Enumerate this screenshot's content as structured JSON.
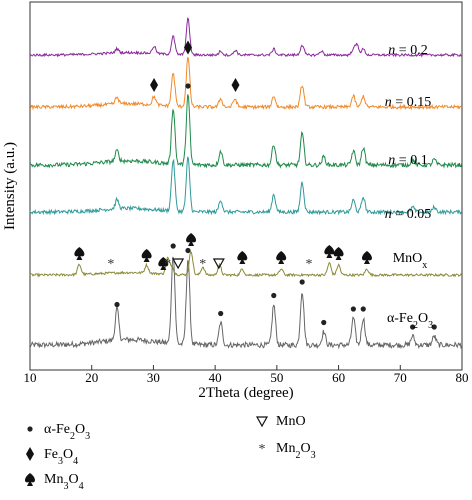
{
  "chart_data": {
    "type": "line",
    "xlabel": "2Theta (degree)",
    "ylabel": "Intensity (a.u.)",
    "xlim": [
      10,
      80
    ],
    "xticks": [
      10,
      20,
      30,
      40,
      50,
      60,
      70,
      80
    ],
    "series": [
      {
        "name": "α-Fe2O3",
        "label_html": "α-Fe<tspan baseline-shift='sub' font-size='10'>2</tspan>O<tspan baseline-shift='sub' font-size='10'>3</tspan>",
        "color": "#666666",
        "peaks": [
          [
            24.1,
            0.35
          ],
          [
            33.2,
            1.0
          ],
          [
            35.6,
            0.95
          ],
          [
            40.9,
            0.25
          ],
          [
            49.5,
            0.45
          ],
          [
            54.1,
            0.6
          ],
          [
            57.6,
            0.15
          ],
          [
            62.4,
            0.3
          ],
          [
            64.0,
            0.3
          ],
          [
            72.0,
            0.1
          ],
          [
            75.5,
            0.1
          ]
        ],
        "markers": [
          [
            24.1,
            "circle"
          ],
          [
            33.2,
            "circle"
          ],
          [
            35.6,
            "circle"
          ],
          [
            40.9,
            "circle"
          ],
          [
            49.5,
            "circle"
          ],
          [
            54.1,
            "circle"
          ],
          [
            57.6,
            "circle"
          ],
          [
            62.4,
            "circle"
          ],
          [
            64.0,
            "circle"
          ],
          [
            72.0,
            "circle"
          ],
          [
            75.5,
            "circle"
          ]
        ]
      },
      {
        "name": "MnOx",
        "label_html": "MnO<tspan baseline-shift='sub' font-size='10'>x</tspan>",
        "color": "#8a8a36",
        "peaks": [
          [
            18.0,
            0.25
          ],
          [
            28.9,
            0.2
          ],
          [
            32.3,
            0.4
          ],
          [
            33.0,
            0.2
          ],
          [
            36.1,
            0.6
          ],
          [
            38.0,
            0.2
          ],
          [
            40.7,
            0.25
          ],
          [
            44.4,
            0.15
          ],
          [
            50.7,
            0.15
          ],
          [
            58.5,
            0.3
          ],
          [
            60.0,
            0.25
          ],
          [
            64.6,
            0.15
          ]
        ],
        "markers": [
          [
            18.0,
            "spade"
          ],
          [
            28.9,
            "spade"
          ],
          [
            31.6,
            "spade"
          ],
          [
            36.1,
            "spade"
          ],
          [
            44.4,
            "spade"
          ],
          [
            50.7,
            "spade"
          ],
          [
            58.5,
            "spade"
          ],
          [
            60.0,
            "spade"
          ],
          [
            64.6,
            "spade"
          ],
          [
            23.1,
            "star"
          ],
          [
            32.3,
            "star"
          ],
          [
            38.0,
            "star"
          ],
          [
            55.2,
            "star"
          ],
          [
            34.0,
            "triangle"
          ],
          [
            40.6,
            "triangle"
          ]
        ]
      },
      {
        "name": "n = 0.05",
        "color": "#2f9a9a",
        "peaks": [
          [
            24.1,
            0.15
          ],
          [
            33.2,
            0.85
          ],
          [
            35.6,
            0.9
          ],
          [
            40.9,
            0.2
          ],
          [
            49.5,
            0.3
          ],
          [
            54.1,
            0.5
          ],
          [
            62.4,
            0.2
          ],
          [
            64.0,
            0.25
          ],
          [
            72.0,
            0.08
          ],
          [
            75.5,
            0.08
          ]
        ],
        "markers": []
      },
      {
        "name": "n = 0.1",
        "color": "#1f8a4a",
        "peaks": [
          [
            24.1,
            0.15
          ],
          [
            33.2,
            0.8
          ],
          [
            35.6,
            1.0
          ],
          [
            40.9,
            0.2
          ],
          [
            49.5,
            0.3
          ],
          [
            54.1,
            0.45
          ],
          [
            57.6,
            0.12
          ],
          [
            62.4,
            0.2
          ],
          [
            64.0,
            0.25
          ],
          [
            72.0,
            0.08
          ],
          [
            75.5,
            0.08
          ]
        ],
        "markers": [
          [
            35.6,
            "circle"
          ]
        ]
      },
      {
        "name": "n = 0.15",
        "color": "#f08a2a",
        "peaks": [
          [
            24.1,
            0.12
          ],
          [
            30.1,
            0.15
          ],
          [
            33.2,
            0.6
          ],
          [
            35.6,
            0.9
          ],
          [
            40.9,
            0.15
          ],
          [
            43.2,
            0.15
          ],
          [
            49.5,
            0.2
          ],
          [
            54.1,
            0.4
          ],
          [
            62.4,
            0.2
          ],
          [
            64.0,
            0.2
          ]
        ],
        "markers": [
          [
            30.1,
            "diamond"
          ],
          [
            43.3,
            "diamond"
          ],
          [
            35.6,
            "diamond"
          ]
        ]
      },
      {
        "name": "n = 0.2",
        "color": "#8a2a9a",
        "peaks": [
          [
            24.1,
            0.1
          ],
          [
            30.1,
            0.18
          ],
          [
            33.2,
            0.45
          ],
          [
            35.6,
            0.9
          ],
          [
            40.9,
            0.1
          ],
          [
            43.3,
            0.12
          ],
          [
            49.5,
            0.15
          ],
          [
            54.1,
            0.25
          ],
          [
            57.2,
            0.1
          ],
          [
            62.4,
            0.15
          ],
          [
            63.0,
            0.25
          ],
          [
            64.0,
            0.15
          ]
        ],
        "markers": []
      }
    ],
    "legend": [
      {
        "symbol": "circle",
        "label": "α-Fe2O3"
      },
      {
        "symbol": "diamond",
        "label": "Fe3O4"
      },
      {
        "symbol": "spade",
        "label": "Mn3O4"
      },
      {
        "symbol": "triangle",
        "label": "MnO"
      },
      {
        "symbol": "star",
        "label": "Mn2O3"
      }
    ],
    "grid": false,
    "legend_position": "bottom"
  }
}
